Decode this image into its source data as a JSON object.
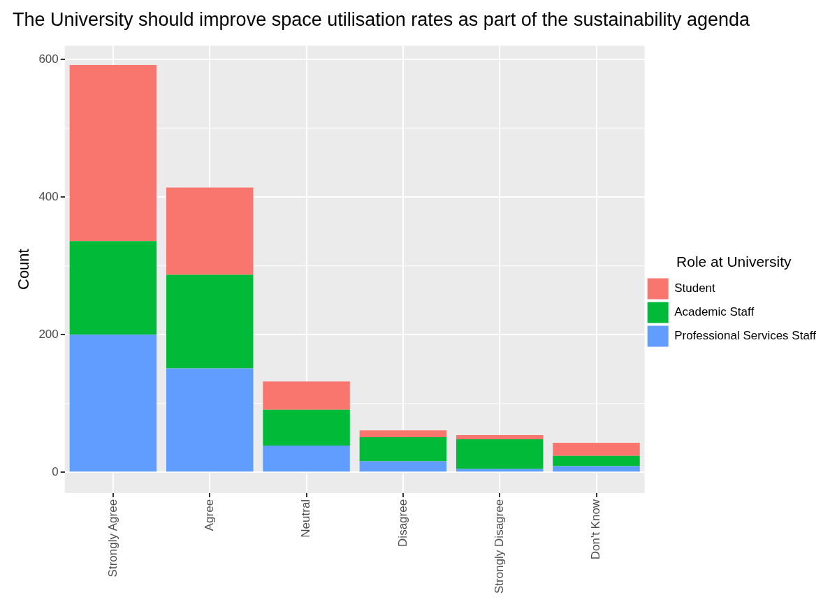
{
  "chart_data": {
    "type": "bar",
    "title": "The University should improve space utilisation rates as part of the sustainability agenda",
    "ylabel": "Count",
    "legend_title": "Role at University",
    "categories": [
      "Strongly Agree",
      "Agree",
      "Neutral",
      "Disagree",
      "Strongly Disagree",
      "Don't Know"
    ],
    "series": [
      {
        "name": "Professional Services Staff",
        "color": "#619cff",
        "values": [
          200,
          151,
          39,
          16,
          5,
          9
        ]
      },
      {
        "name": "Academic Staff",
        "color": "#00ba38",
        "values": [
          136,
          136,
          52,
          35,
          43,
          15
        ]
      },
      {
        "name": "Student",
        "color": "#f8766d",
        "values": [
          256,
          127,
          41,
          10,
          6,
          19
        ]
      }
    ],
    "stacked": true,
    "ylim": [
      -30,
      620
    ],
    "yticks": [
      0,
      200,
      400,
      600
    ],
    "grid": true,
    "legend": "right"
  }
}
